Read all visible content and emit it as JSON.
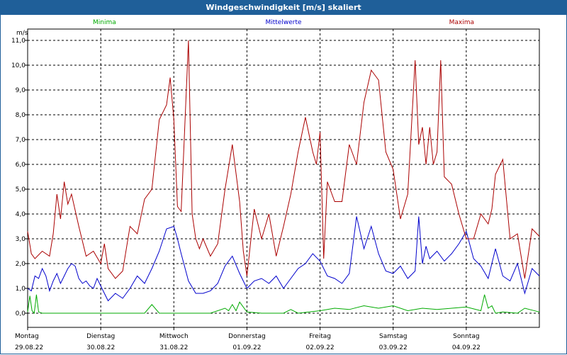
{
  "window": {
    "title": "Windgeschwindigkeit [m/s] skaliert"
  },
  "chart_data": {
    "type": "line",
    "title": "Windgeschwindigkeit [m/s] skaliert",
    "ylabel": "m/s",
    "ylim": [
      0,
      11.4
    ],
    "yticks": [
      "0,0",
      "1,0",
      "2,0",
      "3,0",
      "4,0",
      "5,0",
      "6,0",
      "7,0",
      "8,0",
      "9,0",
      "10,0",
      "11,0"
    ],
    "xlim": [
      0,
      7
    ],
    "grid": true,
    "legend_position": "top",
    "days": [
      {
        "name": "Montag",
        "date": "29.08.22"
      },
      {
        "name": "Dienstag",
        "date": "30.08.22"
      },
      {
        "name": "Mittwoch",
        "date": "31.08.22"
      },
      {
        "name": "Donnerstag",
        "date": "01.09.22"
      },
      {
        "name": "Freitag",
        "date": "02.09.22"
      },
      {
        "name": "Samstag",
        "date": "03.09.22"
      },
      {
        "name": "Sonntag",
        "date": "04.09.22"
      }
    ],
    "series": [
      {
        "name": "Minima",
        "color": "#00aa00",
        "legend_anchor": "start",
        "x": [
          0.0,
          0.03,
          0.06,
          0.09,
          0.12,
          0.15,
          0.2,
          0.3,
          0.5,
          0.8,
          1.0,
          1.2,
          1.5,
          1.6,
          1.7,
          1.8,
          2.0,
          2.5,
          2.7,
          2.75,
          2.8,
          2.85,
          2.9,
          3.0,
          3.2,
          3.4,
          3.5,
          3.6,
          3.7,
          4.0,
          4.2,
          4.4,
          4.6,
          4.8,
          5.0,
          5.2,
          5.4,
          5.6,
          5.8,
          6.0,
          6.2,
          6.25,
          6.3,
          6.35,
          6.4,
          6.5,
          6.7,
          6.8,
          7.0
        ],
        "values": [
          0.05,
          0.7,
          0.1,
          0.0,
          0.75,
          0.05,
          0.0,
          0.0,
          0.0,
          0.0,
          0.0,
          0.0,
          0.0,
          0.0,
          0.35,
          0.0,
          0.0,
          0.0,
          0.2,
          0.1,
          0.35,
          0.1,
          0.45,
          0.05,
          0.0,
          0.0,
          0.0,
          0.15,
          0.0,
          0.1,
          0.2,
          0.15,
          0.3,
          0.2,
          0.3,
          0.1,
          0.2,
          0.15,
          0.2,
          0.25,
          0.1,
          0.75,
          0.2,
          0.3,
          0.0,
          0.05,
          0.0,
          0.2,
          0.05
        ]
      },
      {
        "name": "Mittelwerte",
        "color": "#0000cc",
        "legend_anchor": "middle",
        "x": [
          0.0,
          0.05,
          0.1,
          0.15,
          0.2,
          0.25,
          0.3,
          0.35,
          0.4,
          0.45,
          0.5,
          0.55,
          0.6,
          0.65,
          0.7,
          0.75,
          0.8,
          0.85,
          0.9,
          0.95,
          1.0,
          1.1,
          1.2,
          1.3,
          1.4,
          1.5,
          1.6,
          1.7,
          1.8,
          1.9,
          2.0,
          2.05,
          2.1,
          2.2,
          2.3,
          2.4,
          2.5,
          2.6,
          2.7,
          2.8,
          2.9,
          3.0,
          3.1,
          3.2,
          3.3,
          3.4,
          3.5,
          3.6,
          3.7,
          3.8,
          3.9,
          4.0,
          4.1,
          4.2,
          4.3,
          4.4,
          4.5,
          4.6,
          4.7,
          4.8,
          4.9,
          5.0,
          5.1,
          5.2,
          5.3,
          5.35,
          5.4,
          5.45,
          5.5,
          5.6,
          5.7,
          5.8,
          5.9,
          6.0,
          6.1,
          6.2,
          6.3,
          6.4,
          6.5,
          6.6,
          6.7,
          6.8,
          6.9,
          7.0
        ],
        "values": [
          1.0,
          0.9,
          1.5,
          1.4,
          1.8,
          1.5,
          0.9,
          1.3,
          1.6,
          1.2,
          1.5,
          1.8,
          2.0,
          1.9,
          1.4,
          1.2,
          1.3,
          1.1,
          1.0,
          1.4,
          1.1,
          0.5,
          0.8,
          0.6,
          1.0,
          1.5,
          1.2,
          1.8,
          2.5,
          3.4,
          3.5,
          3.0,
          2.4,
          1.3,
          0.8,
          0.8,
          0.9,
          1.2,
          1.9,
          2.3,
          1.6,
          1.0,
          1.3,
          1.4,
          1.2,
          1.5,
          1.0,
          1.4,
          1.8,
          2.0,
          2.4,
          2.1,
          1.5,
          1.4,
          1.2,
          1.6,
          3.9,
          2.6,
          3.5,
          2.4,
          1.7,
          1.6,
          1.9,
          1.4,
          1.7,
          3.9,
          2.0,
          2.7,
          2.2,
          2.5,
          2.1,
          2.4,
          2.8,
          3.3,
          2.2,
          1.9,
          1.4,
          2.6,
          1.5,
          1.3,
          2.0,
          0.8,
          1.8,
          1.5
        ]
      },
      {
        "name": "Maxima",
        "color": "#aa0000",
        "legend_anchor": "end",
        "x": [
          0.0,
          0.05,
          0.1,
          0.2,
          0.3,
          0.35,
          0.4,
          0.45,
          0.5,
          0.55,
          0.6,
          0.7,
          0.8,
          0.9,
          1.0,
          1.05,
          1.1,
          1.2,
          1.3,
          1.4,
          1.5,
          1.6,
          1.7,
          1.8,
          1.9,
          1.95,
          2.0,
          2.05,
          2.1,
          2.2,
          2.25,
          2.3,
          2.35,
          2.4,
          2.5,
          2.6,
          2.7,
          2.8,
          2.9,
          2.95,
          3.0,
          3.1,
          3.2,
          3.3,
          3.4,
          3.5,
          3.6,
          3.7,
          3.8,
          3.9,
          3.95,
          4.0,
          4.05,
          4.1,
          4.2,
          4.3,
          4.4,
          4.5,
          4.6,
          4.7,
          4.8,
          4.9,
          5.0,
          5.1,
          5.2,
          5.3,
          5.35,
          5.4,
          5.45,
          5.5,
          5.55,
          5.6,
          5.65,
          5.7,
          5.8,
          5.9,
          6.0,
          6.1,
          6.2,
          6.3,
          6.35,
          6.4,
          6.5,
          6.6,
          6.7,
          6.8,
          6.9,
          7.0
        ],
        "values": [
          3.3,
          2.4,
          2.2,
          2.5,
          2.3,
          3.2,
          4.8,
          3.8,
          5.3,
          4.4,
          4.8,
          3.5,
          2.3,
          2.5,
          2.0,
          2.8,
          1.8,
          1.4,
          1.7,
          3.5,
          3.2,
          4.6,
          5.0,
          7.8,
          8.4,
          9.5,
          7.8,
          4.3,
          4.1,
          11.0,
          4.0,
          3.0,
          2.6,
          3.0,
          2.3,
          2.8,
          5.0,
          6.8,
          4.5,
          2.5,
          1.5,
          4.2,
          3.0,
          4.0,
          2.3,
          3.5,
          4.8,
          6.5,
          7.9,
          6.5,
          6.0,
          7.3,
          2.2,
          5.3,
          4.5,
          4.5,
          6.8,
          6.0,
          8.5,
          9.8,
          9.4,
          6.5,
          5.8,
          3.8,
          4.8,
          10.2,
          6.8,
          7.5,
          6.0,
          7.5,
          6.0,
          6.5,
          10.2,
          5.5,
          5.2,
          4.0,
          3.0,
          3.0,
          4.0,
          3.6,
          4.2,
          5.6,
          6.2,
          3.0,
          3.2,
          1.4,
          3.4,
          3.1
        ]
      }
    ]
  }
}
